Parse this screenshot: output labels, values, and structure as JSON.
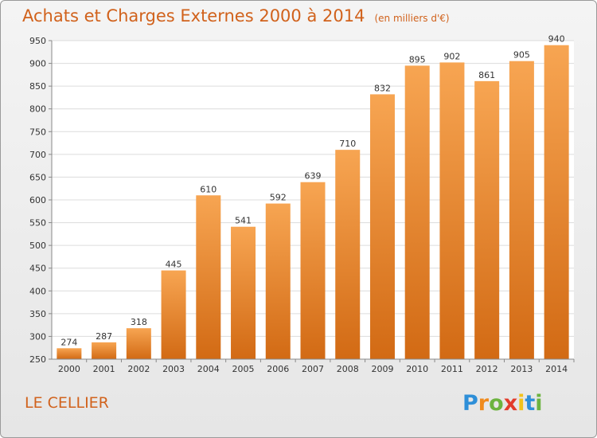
{
  "title": "Achats et Charges Externes 2000 à 2014",
  "subtitle": "(en milliers d'€)",
  "commune": "LE CELLIER",
  "logo": "Proxiti",
  "colors": {
    "accent": "#d1621c",
    "bar_top": "#f7a552",
    "bar_bottom": "#d26a14"
  },
  "chart_data": {
    "type": "bar",
    "title": "Achats et Charges Externes 2000 à 2014",
    "subtitle": "(en milliers d'€)",
    "xlabel": "",
    "ylabel": "",
    "categories": [
      "2000",
      "2001",
      "2002",
      "2003",
      "2004",
      "2005",
      "2006",
      "2007",
      "2008",
      "2009",
      "2010",
      "2011",
      "2012",
      "2013",
      "2014"
    ],
    "values": [
      274,
      287,
      318,
      445,
      610,
      541,
      592,
      639,
      710,
      832,
      895,
      902,
      861,
      905,
      940
    ],
    "ylim": [
      250,
      950
    ],
    "yticks": [
      250,
      300,
      350,
      400,
      450,
      500,
      550,
      600,
      650,
      700,
      750,
      800,
      850,
      900,
      950
    ],
    "grid": true
  }
}
